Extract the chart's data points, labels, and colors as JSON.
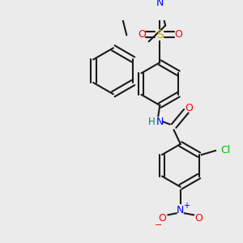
{
  "background_color": "#ebebeb",
  "line_color": "#1a1a1a",
  "bond_width": 1.5,
  "figsize": [
    3.0,
    3.0
  ],
  "dpi": 100,
  "colors": {
    "N": "#0000ff",
    "O": "#ff0000",
    "S": "#ccaa00",
    "Cl": "#00bb00",
    "H": "#008080",
    "C": "#1a1a1a"
  }
}
